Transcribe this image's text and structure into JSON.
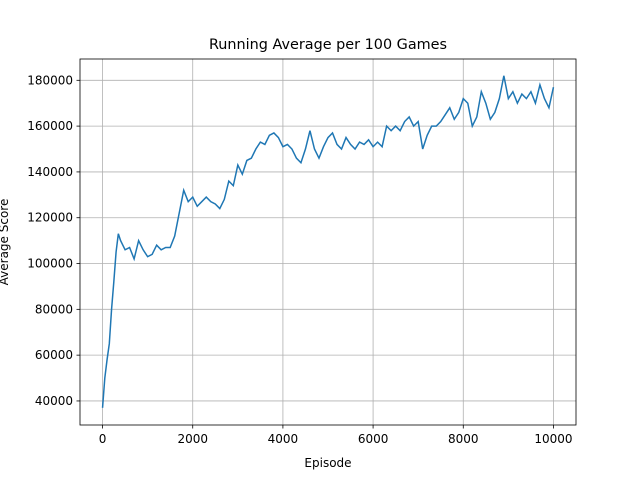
{
  "chart_data": {
    "type": "line",
    "title": "Running Average per 100 Games",
    "x_label": "Episode",
    "y_label": "Average Score",
    "x": [
      0,
      50,
      100,
      150,
      200,
      250,
      300,
      350,
      400,
      500,
      600,
      700,
      800,
      900,
      1000,
      1100,
      1200,
      1300,
      1400,
      1500,
      1600,
      1700,
      1800,
      1900,
      2000,
      2100,
      2200,
      2300,
      2400,
      2500,
      2600,
      2700,
      2800,
      2900,
      3000,
      3100,
      3200,
      3300,
      3400,
      3500,
      3600,
      3700,
      3800,
      3900,
      4000,
      4100,
      4200,
      4300,
      4400,
      4500,
      4600,
      4700,
      4800,
      4900,
      5000,
      5100,
      5200,
      5300,
      5400,
      5500,
      5600,
      5700,
      5800,
      5900,
      6000,
      6100,
      6200,
      6300,
      6400,
      6500,
      6600,
      6700,
      6800,
      6900,
      7000,
      7100,
      7200,
      7300,
      7400,
      7500,
      7600,
      7700,
      7800,
      7900,
      8000,
      8100,
      8200,
      8300,
      8400,
      8500,
      8600,
      8700,
      8800,
      8900,
      9000,
      9100,
      9200,
      9300,
      9400,
      9500,
      9600,
      9700,
      9800,
      9900,
      10000
    ],
    "series": [
      {
        "name": "Average Score",
        "color": "#1f77b4",
        "values": [
          37000,
          50000,
          58000,
          65000,
          80000,
          92000,
          105000,
          113000,
          110000,
          106000,
          107000,
          102000,
          110000,
          106000,
          103000,
          104000,
          108000,
          106000,
          107000,
          107000,
          112000,
          122000,
          132000,
          127000,
          129000,
          125000,
          127000,
          129000,
          127000,
          126000,
          124000,
          128000,
          136000,
          134000,
          143000,
          139000,
          145000,
          146000,
          150000,
          153000,
          152000,
          156000,
          157000,
          155000,
          151000,
          152000,
          150000,
          146000,
          144000,
          150000,
          158000,
          150000,
          146000,
          151000,
          155000,
          157000,
          152000,
          150000,
          155000,
          152000,
          150000,
          153000,
          152000,
          154000,
          151000,
          153000,
          151000,
          160000,
          158000,
          160000,
          158000,
          162000,
          164000,
          160000,
          162000,
          150000,
          156000,
          160000,
          160000,
          162000,
          165000,
          168000,
          163000,
          166000,
          172000,
          170000,
          160000,
          164000,
          175000,
          170000,
          163000,
          166000,
          172000,
          182000,
          172000,
          175000,
          170000,
          174000,
          172000,
          175000,
          170000,
          178000,
          172000,
          168000,
          177000
        ]
      }
    ],
    "xlim": [
      -500,
      10500
    ],
    "xticks": [
      0,
      2000,
      4000,
      6000,
      8000,
      10000
    ],
    "ylim": [
      29500,
      189300
    ],
    "yticks": [
      40000,
      60000,
      80000,
      100000,
      120000,
      140000,
      160000,
      180000
    ],
    "grid": true
  }
}
